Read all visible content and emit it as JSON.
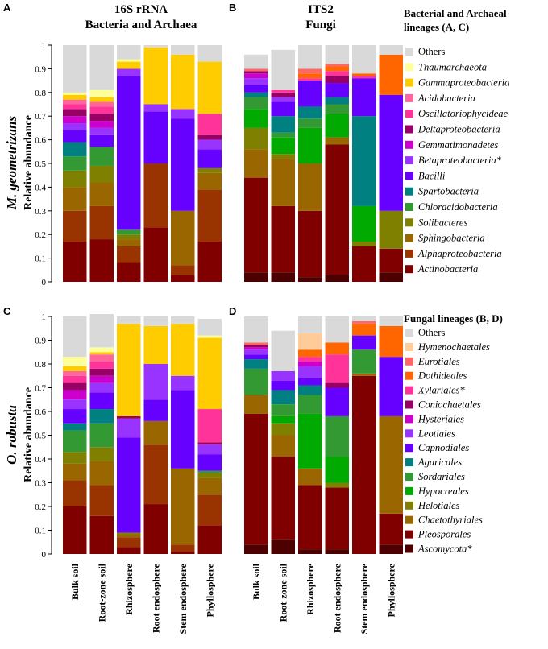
{
  "figure": {
    "panel_letters": [
      "A",
      "B",
      "C",
      "D"
    ],
    "column_titles": [
      {
        "line1": "16S rRNA",
        "line2": "Bacteria and Archaea"
      },
      {
        "line1": "ITS2",
        "line2": "Fungi"
      }
    ],
    "row_species": [
      "M. geometrizans",
      "O. robusta"
    ],
    "ylabel": "Relative abundance",
    "categories": [
      "Bulk soil",
      "Root-zone soil",
      "Rhizosphere",
      "Root endosphere",
      "Stem endosphere",
      "Phyllosphere"
    ],
    "yticks": [
      "0",
      "0.1",
      "0.2",
      "0.3",
      "0.4",
      "0.5",
      "0.6",
      "0.7",
      "0.8",
      "0.9",
      "1"
    ]
  },
  "legends": {
    "bacteria": {
      "title_line1": "Bacterial and Archaeal",
      "title_line2": "lineages (A, C)",
      "items": [
        {
          "label": "Others",
          "color": "#d9d9d9",
          "italic": false
        },
        {
          "label": "Thaumarchaeota",
          "color": "#ffff99",
          "italic": true
        },
        {
          "label": "Gammaproteobacteria",
          "color": "#ffcc00",
          "italic": true
        },
        {
          "label": "Acidobacteria",
          "color": "#ff6699",
          "italic": true
        },
        {
          "label": "Oscillatoriophycideae",
          "color": "#ff3399",
          "italic": true
        },
        {
          "label": "Deltaproteobacteria",
          "color": "#990066",
          "italic": true
        },
        {
          "label": "Gemmatimonadetes",
          "color": "#cc00cc",
          "italic": true
        },
        {
          "label": "Betaproteobacteria*",
          "color": "#9933ff",
          "italic": true
        },
        {
          "label": "Bacilli",
          "color": "#6600ff",
          "italic": true
        },
        {
          "label": "Spartobacteria",
          "color": "#008080",
          "italic": true
        },
        {
          "label": "Chloracidobacteria",
          "color": "#339933",
          "italic": true
        },
        {
          "label": "Solibacteres",
          "color": "#808000",
          "italic": true
        },
        {
          "label": "Sphingobacteria",
          "color": "#996600",
          "italic": true
        },
        {
          "label": "Alphaproteobacteria",
          "color": "#993300",
          "italic": true
        },
        {
          "label": "Actinobacteria",
          "color": "#800000",
          "italic": true
        }
      ]
    },
    "fungi": {
      "title": "Fungal lineages (B, D)",
      "items": [
        {
          "label": "Others",
          "color": "#d9d9d9",
          "italic": false
        },
        {
          "label": "Hymenochaetales",
          "color": "#ffcc99",
          "italic": true
        },
        {
          "label": "Eurotiales",
          "color": "#ff6666",
          "italic": true
        },
        {
          "label": "Dothideales",
          "color": "#ff6600",
          "italic": true
        },
        {
          "label": "Xylariales*",
          "color": "#ff3399",
          "italic": true
        },
        {
          "label": "Coniochaetales",
          "color": "#990066",
          "italic": true
        },
        {
          "label": "Hysteriales",
          "color": "#cc00cc",
          "italic": true
        },
        {
          "label": "Leotiales",
          "color": "#9933ff",
          "italic": true
        },
        {
          "label": "Capnodiales",
          "color": "#6600ff",
          "italic": true
        },
        {
          "label": "Agaricales",
          "color": "#008080",
          "italic": true
        },
        {
          "label": "Sordariales",
          "color": "#339933",
          "italic": true
        },
        {
          "label": "Hypocreales",
          "color": "#00aa00",
          "italic": true
        },
        {
          "label": "Helotiales",
          "color": "#808000",
          "italic": true
        },
        {
          "label": "Chaetothyriales",
          "color": "#996600",
          "italic": true
        },
        {
          "label": "Pleosporales",
          "color": "#800000",
          "italic": true
        },
        {
          "label": "Ascomycota*",
          "color": "#4d0000",
          "italic": true
        }
      ]
    }
  },
  "chart_data": [
    {
      "panel": "A",
      "type": "bar",
      "stacked": true,
      "title": "16S rRNA Bacteria and Archaea",
      "ylabel": "Relative abundance",
      "ylim": [
        0,
        1
      ],
      "categories": [
        "Bulk soil",
        "Root-zone soil",
        "Rhizosphere",
        "Root endosphere",
        "Stem endosphere",
        "Phyllosphere"
      ],
      "series": [
        {
          "name": "Actinobacteria",
          "values": [
            0.17,
            0.18,
            0.08,
            0.23,
            0.03,
            0.17
          ]
        },
        {
          "name": "Alphaproteobacteria",
          "values": [
            0.13,
            0.14,
            0.07,
            0.27,
            0.04,
            0.22
          ]
        },
        {
          "name": "Sphingobacteria",
          "values": [
            0.1,
            0.1,
            0.03,
            0.0,
            0.23,
            0.07
          ]
        },
        {
          "name": "Solibacteres",
          "values": [
            0.07,
            0.07,
            0.02,
            0.0,
            0.0,
            0.02
          ]
        },
        {
          "name": "Chloracidobacteria",
          "values": [
            0.06,
            0.08,
            0.02,
            0.0,
            0.0,
            0.0
          ]
        },
        {
          "name": "Spartobacteria",
          "values": [
            0.06,
            0.0,
            0.0,
            0.0,
            0.0,
            0.0
          ]
        },
        {
          "name": "Bacilli",
          "values": [
            0.05,
            0.05,
            0.65,
            0.22,
            0.39,
            0.08
          ]
        },
        {
          "name": "Betaproteobacteria*",
          "values": [
            0.03,
            0.03,
            0.03,
            0.03,
            0.04,
            0.04
          ]
        },
        {
          "name": "Gemmatimonadetes",
          "values": [
            0.03,
            0.03,
            0.0,
            0.0,
            0.0,
            0.0
          ]
        },
        {
          "name": "Deltaproteobacteria",
          "values": [
            0.03,
            0.03,
            0.0,
            0.0,
            0.0,
            0.02
          ]
        },
        {
          "name": "Oscillatoriophycideae",
          "values": [
            0.02,
            0.03,
            0.0,
            0.0,
            0.0,
            0.09
          ]
        },
        {
          "name": "Acidobacteria",
          "values": [
            0.02,
            0.02,
            0.0,
            0.0,
            0.0,
            0.0
          ]
        },
        {
          "name": "Gammaproteobacteria",
          "values": [
            0.02,
            0.02,
            0.03,
            0.24,
            0.23,
            0.22
          ]
        },
        {
          "name": "Thaumarchaeota",
          "values": [
            0.01,
            0.03,
            0.01,
            0.0,
            0.0,
            0.0
          ]
        },
        {
          "name": "Others",
          "values": [
            0.2,
            0.19,
            0.06,
            0.01,
            0.04,
            0.07
          ]
        }
      ]
    },
    {
      "panel": "B",
      "type": "bar",
      "stacked": true,
      "title": "ITS2 Fungi",
      "ylabel": "Relative abundance",
      "ylim": [
        0,
        1
      ],
      "categories": [
        "Bulk soil",
        "Root-zone soil",
        "Rhizosphere",
        "Root endosphere",
        "Stem endosphere",
        "Phyllosphere"
      ],
      "series": [
        {
          "name": "Ascomycota*",
          "values": [
            0.04,
            0.04,
            0.02,
            0.03,
            0.0,
            0.04
          ]
        },
        {
          "name": "Pleosporales",
          "values": [
            0.4,
            0.28,
            0.28,
            0.55,
            0.15,
            0.1
          ]
        },
        {
          "name": "Chaetothyriales",
          "values": [
            0.12,
            0.2,
            0.2,
            0.03,
            0.0,
            0.0
          ]
        },
        {
          "name": "Helotiales",
          "values": [
            0.09,
            0.02,
            0.0,
            0.0,
            0.02,
            0.16
          ]
        },
        {
          "name": "Hypocreales",
          "values": [
            0.08,
            0.07,
            0.15,
            0.1,
            0.15,
            0.0
          ]
        },
        {
          "name": "Sordariales",
          "values": [
            0.05,
            0.02,
            0.04,
            0.04,
            0.0,
            0.0
          ]
        },
        {
          "name": "Agaricales",
          "values": [
            0.02,
            0.07,
            0.05,
            0.03,
            0.38,
            0.0
          ]
        },
        {
          "name": "Capnodiales",
          "values": [
            0.03,
            0.06,
            0.11,
            0.06,
            0.16,
            0.49
          ]
        },
        {
          "name": "Leotiales",
          "values": [
            0.03,
            0.02,
            0.0,
            0.0,
            0.0,
            0.0
          ]
        },
        {
          "name": "Hysteriales",
          "values": [
            0.02,
            0.0,
            0.0,
            0.0,
            0.0,
            0.0
          ]
        },
        {
          "name": "Coniochaetales",
          "values": [
            0.01,
            0.02,
            0.0,
            0.03,
            0.0,
            0.0
          ]
        },
        {
          "name": "Xylariales*",
          "values": [
            0.0,
            0.01,
            0.01,
            0.02,
            0.01,
            0.0
          ]
        },
        {
          "name": "Dothideales",
          "values": [
            0.0,
            0.0,
            0.02,
            0.02,
            0.01,
            0.17
          ]
        },
        {
          "name": "Eurotiales",
          "values": [
            0.01,
            0.0,
            0.02,
            0.01,
            0.0,
            0.0
          ]
        },
        {
          "name": "Others",
          "values": [
            0.06,
            0.17,
            0.1,
            0.08,
            0.12,
            0.04
          ]
        }
      ]
    },
    {
      "panel": "C",
      "type": "bar",
      "stacked": true,
      "title": "",
      "ylabel": "Relative abundance",
      "ylim": [
        0,
        1
      ],
      "categories": [
        "Bulk soil",
        "Root-zone soil",
        "Rhizosphere",
        "Root endosphere",
        "Stem endosphere",
        "Phyllosphere"
      ],
      "series": [
        {
          "name": "Actinobacteria",
          "values": [
            0.2,
            0.16,
            0.03,
            0.21,
            0.01,
            0.12
          ]
        },
        {
          "name": "Alphaproteobacteria",
          "values": [
            0.11,
            0.13,
            0.04,
            0.25,
            0.03,
            0.13
          ]
        },
        {
          "name": "Sphingobacteria",
          "values": [
            0.07,
            0.1,
            0.01,
            0.1,
            0.32,
            0.07
          ]
        },
        {
          "name": "Solibacteres",
          "values": [
            0.05,
            0.06,
            0.01,
            0.0,
            0.0,
            0.02
          ]
        },
        {
          "name": "Chloracidobacteria",
          "values": [
            0.09,
            0.1,
            0.0,
            0.0,
            0.0,
            0.01
          ]
        },
        {
          "name": "Spartobacteria",
          "values": [
            0.03,
            0.06,
            0.0,
            0.0,
            0.0,
            0.0
          ]
        },
        {
          "name": "Bacilli",
          "values": [
            0.06,
            0.07,
            0.4,
            0.09,
            0.33,
            0.07
          ]
        },
        {
          "name": "Betaproteobacteria*",
          "values": [
            0.04,
            0.04,
            0.08,
            0.15,
            0.06,
            0.04
          ]
        },
        {
          "name": "Gemmatimonadetes",
          "values": [
            0.04,
            0.03,
            0.0,
            0.0,
            0.0,
            0.0
          ]
        },
        {
          "name": "Deltaproteobacteria",
          "values": [
            0.03,
            0.03,
            0.01,
            0.0,
            0.0,
            0.01
          ]
        },
        {
          "name": "Oscillatoriophycideae",
          "values": [
            0.03,
            0.03,
            0.0,
            0.0,
            0.0,
            0.14
          ]
        },
        {
          "name": "Acidobacteria",
          "values": [
            0.02,
            0.03,
            0.0,
            0.0,
            0.0,
            0.0
          ]
        },
        {
          "name": "Gammaproteobacteria",
          "values": [
            0.02,
            0.01,
            0.39,
            0.16,
            0.22,
            0.3
          ]
        },
        {
          "name": "Thaumarchaeota",
          "values": [
            0.04,
            0.02,
            0.0,
            0.0,
            0.0,
            0.01
          ]
        },
        {
          "name": "Others",
          "values": [
            0.17,
            0.14,
            0.03,
            0.04,
            0.03,
            0.07
          ]
        }
      ]
    },
    {
      "panel": "D",
      "type": "bar",
      "stacked": true,
      "title": "",
      "ylabel": "Relative abundance",
      "ylim": [
        0,
        1
      ],
      "categories": [
        "Bulk soil",
        "Root-zone soil",
        "Rhizosphere",
        "Root endosphere",
        "Stem endosphere",
        "Phyllosphere"
      ],
      "series": [
        {
          "name": "Ascomycota*",
          "values": [
            0.04,
            0.06,
            0.02,
            0.02,
            0.0,
            0.04
          ]
        },
        {
          "name": "Pleosporales",
          "values": [
            0.55,
            0.35,
            0.27,
            0.26,
            0.75,
            0.13
          ]
        },
        {
          "name": "Chaetothyriales",
          "values": [
            0.08,
            0.09,
            0.07,
            0.0,
            0.01,
            0.41
          ]
        },
        {
          "name": "Helotiales",
          "values": [
            0.0,
            0.05,
            0.0,
            0.02,
            0.0,
            0.0
          ]
        },
        {
          "name": "Hypocreales",
          "values": [
            0.0,
            0.03,
            0.23,
            0.11,
            0.0,
            0.0
          ]
        },
        {
          "name": "Sordariales",
          "values": [
            0.11,
            0.05,
            0.08,
            0.17,
            0.1,
            0.0
          ]
        },
        {
          "name": "Agaricales",
          "values": [
            0.04,
            0.06,
            0.04,
            0.0,
            0.0,
            0.0
          ]
        },
        {
          "name": "Capnodiales",
          "values": [
            0.02,
            0.04,
            0.03,
            0.12,
            0.06,
            0.25
          ]
        },
        {
          "name": "Leotiales",
          "values": [
            0.02,
            0.04,
            0.05,
            0.0,
            0.0,
            0.0
          ]
        },
        {
          "name": "Hysteriales",
          "values": [
            0.01,
            0.0,
            0.02,
            0.0,
            0.0,
            0.0
          ]
        },
        {
          "name": "Coniochaetales",
          "values": [
            0.01,
            0.0,
            0.0,
            0.02,
            0.0,
            0.0
          ]
        },
        {
          "name": "Xylariales*",
          "values": [
            0.0,
            0.0,
            0.02,
            0.12,
            0.0,
            0.0
          ]
        },
        {
          "name": "Dothideales",
          "values": [
            0.0,
            0.0,
            0.03,
            0.05,
            0.05,
            0.13
          ]
        },
        {
          "name": "Eurotiales",
          "values": [
            0.01,
            0.0,
            0.0,
            0.0,
            0.01,
            0.0
          ]
        },
        {
          "name": "Hymenochaetales",
          "values": [
            0.0,
            0.0,
            0.07,
            0.0,
            0.0,
            0.0
          ]
        },
        {
          "name": "Others",
          "values": [
            0.11,
            0.17,
            0.07,
            0.11,
            0.02,
            0.04
          ]
        }
      ]
    }
  ]
}
